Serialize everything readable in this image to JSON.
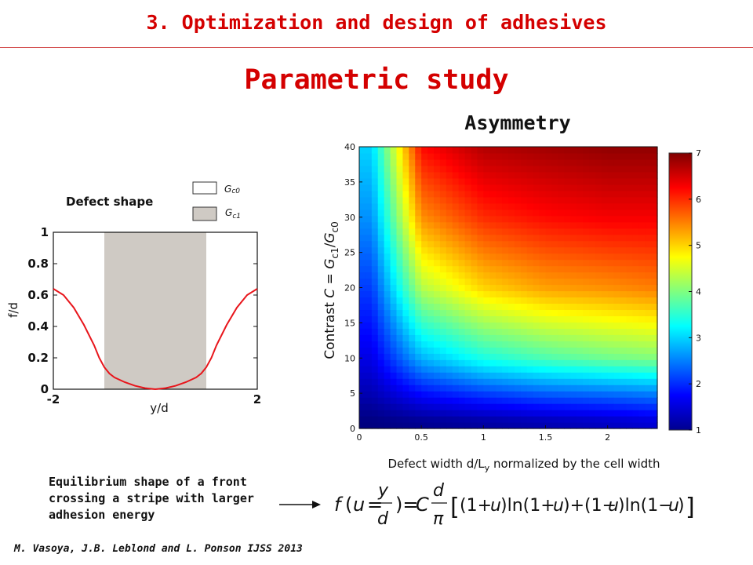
{
  "header": {
    "title": "3. Optimization and design of adhesives"
  },
  "main_title": "Parametric study",
  "left_panel": {
    "label": "Defect shape",
    "legend": [
      {
        "label": "Gc0",
        "base": "G",
        "sub": "c0",
        "color": "#ffffff"
      },
      {
        "label": "Gc1",
        "base": "G",
        "sub": "c1",
        "color": "#cfcac4"
      }
    ],
    "caption_lines": [
      "Equilibrium shape of a front",
      "crossing a stripe with larger",
      "adhesion energy"
    ]
  },
  "right_panel": {
    "title": "Asymmetry",
    "ylabel": "Contrast C = Gc1/Gc0",
    "xlabel": "Defect width d/Ly normalized by the cell width"
  },
  "formula": "f(u = y/d) = C (d/π) [(1+u)ln(1+u) + (1−u)ln(1−u)]",
  "citation": "M. Vasoya, J.B. Leblond and L. Ponson IJSS 2013",
  "colors": {
    "accent": "#d40000",
    "curve": "#e8151b",
    "stripe": "#cfcac4"
  },
  "chart_data": [
    {
      "type": "line",
      "title": "Defect shape",
      "xlabel": "y/d",
      "ylabel": "f/d",
      "xlim": [
        -2,
        2
      ],
      "ylim": [
        0,
        1
      ],
      "xticks": [
        "-2",
        "2"
      ],
      "yticks": [
        "0",
        "0.2",
        "0.4",
        "0.6",
        "0.8",
        "1"
      ],
      "shaded_band": {
        "x": [
          -1,
          1
        ],
        "label": "Gc1"
      },
      "series": [
        {
          "x": [
            -2.0,
            -1.8,
            -1.6,
            -1.4,
            -1.2,
            -1.1,
            -1.0,
            -0.9,
            -0.8,
            -0.6,
            -0.4,
            -0.2,
            0.0,
            0.2,
            0.4,
            0.6,
            0.8,
            0.9,
            1.0,
            1.1,
            1.2,
            1.4,
            1.6,
            1.8,
            2.0
          ],
          "y": [
            0.64,
            0.6,
            0.52,
            0.41,
            0.28,
            0.2,
            0.14,
            0.1,
            0.075,
            0.045,
            0.022,
            0.007,
            0.0,
            0.007,
            0.022,
            0.045,
            0.075,
            0.1,
            0.14,
            0.2,
            0.28,
            0.41,
            0.52,
            0.6,
            0.64
          ]
        }
      ]
    },
    {
      "type": "heatmap",
      "title": "Asymmetry",
      "xlabel": "Defect width d/Ly normalized by the cell width",
      "ylabel": "Contrast C = Gc1/Gc0",
      "xlim": [
        0,
        2.4
      ],
      "ylim": [
        0,
        40
      ],
      "xticks": [
        "0",
        "0.5",
        "1",
        "1.5",
        "2"
      ],
      "yticks": [
        "0",
        "5",
        "10",
        "15",
        "20",
        "25",
        "30",
        "35",
        "40"
      ],
      "colorbar": {
        "range": [
          1,
          7
        ],
        "ticks": [
          "1",
          "2",
          "3",
          "4",
          "5",
          "6",
          "7"
        ],
        "colormap": "jet"
      },
      "description_values": {
        "x": [
          0.1,
          0.5,
          1.0,
          1.5,
          2.0,
          2.35
        ],
        "y": [
          1,
          5,
          10,
          20,
          30,
          40
        ],
        "z": [
          [
            1.0,
            1.1,
            1.2,
            1.3,
            1.4,
            1.5
          ],
          [
            1.3,
            1.8,
            2.1,
            2.3,
            2.4,
            2.5
          ],
          [
            1.6,
            2.8,
            3.4,
            3.7,
            3.9,
            4.0
          ],
          [
            2.1,
            4.3,
            5.0,
            5.3,
            5.4,
            5.5
          ],
          [
            2.6,
            5.4,
            6.0,
            6.2,
            6.3,
            6.3
          ],
          [
            3.0,
            6.2,
            6.7,
            6.8,
            6.9,
            6.9
          ]
        ]
      }
    }
  ]
}
